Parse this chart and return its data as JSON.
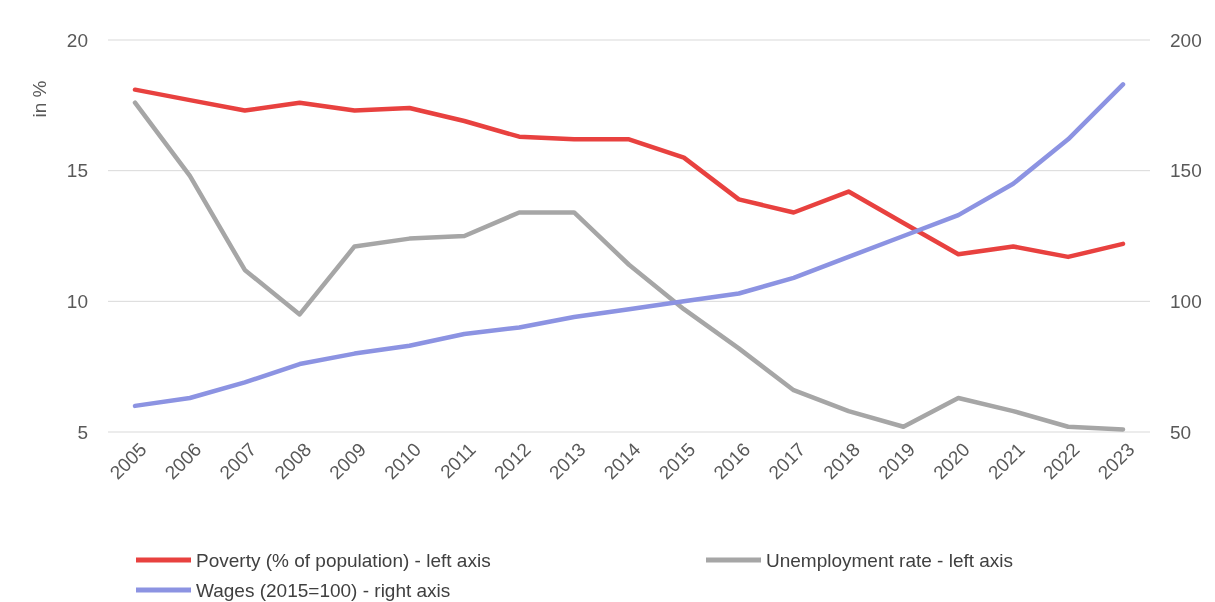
{
  "chart_data": {
    "type": "line",
    "ylabel": "in %",
    "categories": [
      "2005",
      "2006",
      "2007",
      "2008",
      "2009",
      "2010",
      "2011",
      "2012",
      "2013",
      "2014",
      "2015",
      "2016",
      "2017",
      "2018",
      "2019",
      "2020",
      "2021",
      "2022",
      "2023"
    ],
    "ylim": [
      5,
      20
    ],
    "yticks": [
      5,
      10,
      15,
      20
    ],
    "y2lim": [
      50,
      200
    ],
    "y2ticks": [
      50,
      100,
      150,
      200
    ],
    "grid": "y",
    "legend": "bottom",
    "line_style": "solid",
    "marker": "none",
    "series": [
      {
        "name": "Poverty (% of population) - left axis",
        "color": "#e8413f",
        "values": [
          18.1,
          17.7,
          17.3,
          17.6,
          17.3,
          17.4,
          16.9,
          16.3,
          16.2,
          16.2,
          15.5,
          13.9,
          13.4,
          14.2,
          13.0,
          11.8,
          12.1,
          11.7,
          12.2
        ]
      },
      {
        "name": "Unemployment rate - left axis",
        "color": "#a6a6a6",
        "values": [
          17.6,
          14.8,
          11.2,
          9.5,
          12.1,
          12.4,
          12.5,
          13.4,
          13.4,
          11.4,
          9.7,
          8.2,
          6.6,
          5.8,
          5.2,
          6.3,
          5.8,
          5.2,
          5.1
        ]
      },
      {
        "name": "Wages (2015=100) - right axis",
        "color": "#8c93e2",
        "axis": "y2",
        "values": [
          60,
          63,
          69,
          76,
          80,
          83,
          87.5,
          90,
          94,
          97,
          100,
          103,
          109,
          117,
          125,
          133,
          145,
          162,
          183
        ]
      }
    ]
  }
}
